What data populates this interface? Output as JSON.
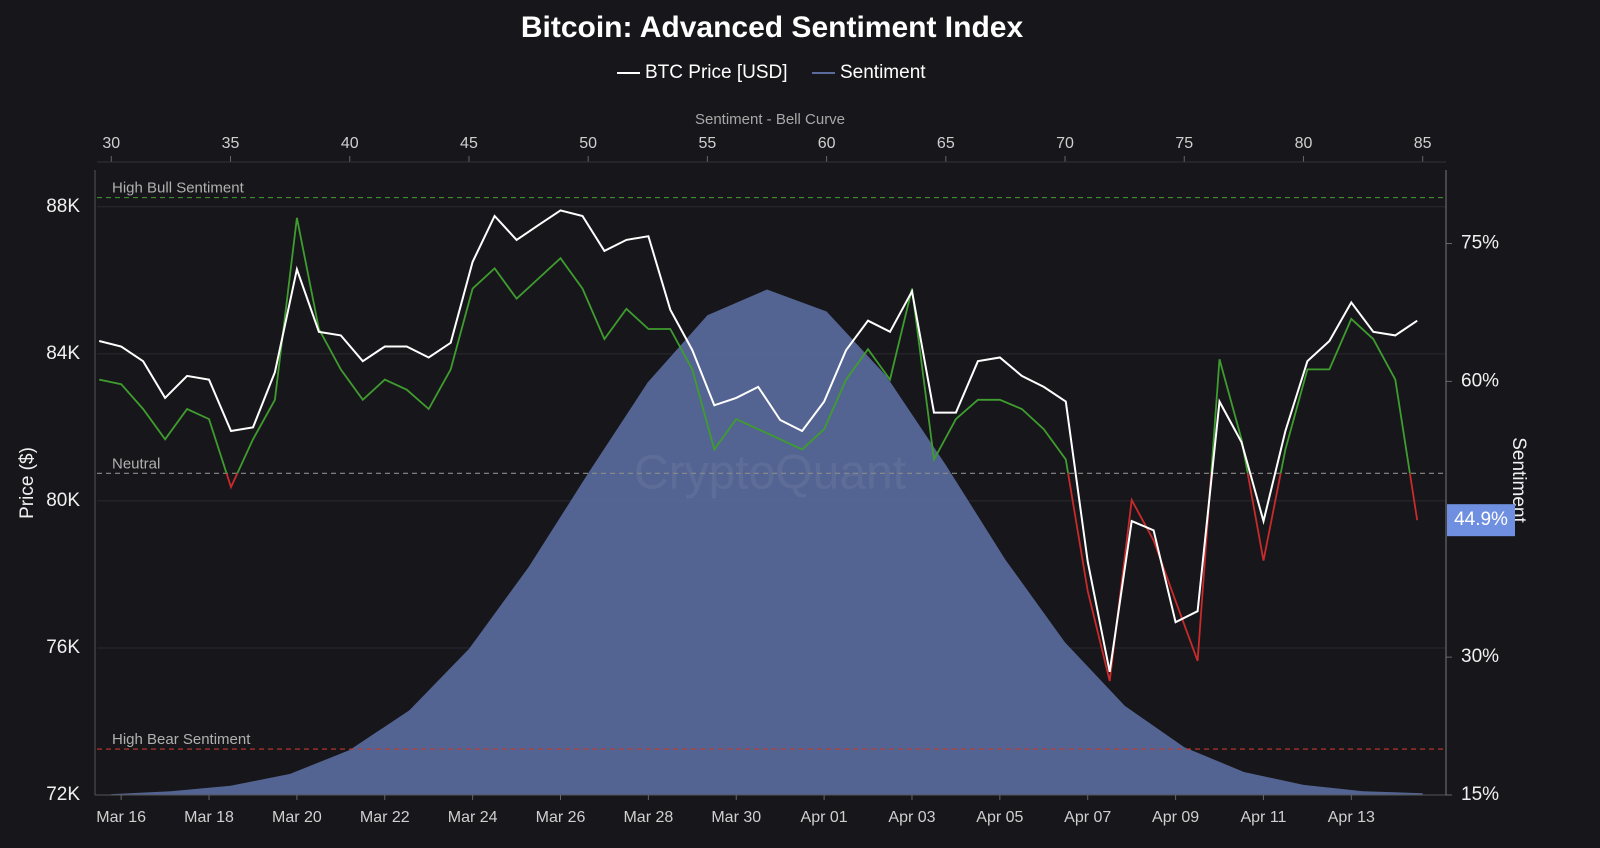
{
  "chart_data": {
    "type": "line",
    "title": "Bitcoin: Advanced Sentiment Index",
    "watermark": "CryptoQuant",
    "ylabel": "Price ($)",
    "y2label": "Sentiment",
    "x2label": "Sentiment - Bell Curve",
    "categories": [
      null,
      "Mar 16",
      null,
      null,
      null,
      "Mar 18",
      null,
      null,
      null,
      "Mar 20",
      null,
      null,
      null,
      "Mar 22",
      null,
      null,
      null,
      "Mar 24",
      null,
      null,
      null,
      "Mar 26",
      null,
      null,
      null,
      "Mar 28",
      null,
      null,
      null,
      "Mar 30",
      null,
      null,
      null,
      "Apr 01",
      null,
      null,
      null,
      "Apr 03",
      null,
      null,
      null,
      "Apr 05",
      null,
      null,
      null,
      "Apr 07",
      null,
      null,
      null,
      "Apr 09",
      null,
      null,
      null,
      "Apr 11",
      null,
      null,
      null,
      "Apr 13",
      null,
      null,
      null
    ],
    "ylim": [
      72000,
      89000
    ],
    "yticks": [
      {
        "value": 72000,
        "label": "72K"
      },
      {
        "value": 76000,
        "label": "76K"
      },
      {
        "value": 80000,
        "label": "80K"
      },
      {
        "value": 84000,
        "label": "84K"
      },
      {
        "value": 88000,
        "label": "88K"
      }
    ],
    "y2lim": [
      15,
      83
    ],
    "y2ticks": [
      {
        "value": 15,
        "label": "15%"
      },
      {
        "value": 30,
        "label": "30%"
      },
      {
        "value": 60,
        "label": "60%"
      },
      {
        "value": 75,
        "label": "75%"
      }
    ],
    "x2lim": [
      29.4,
      85.6
    ],
    "x2ticks": [
      30,
      35,
      40,
      45,
      50,
      55,
      60,
      65,
      70,
      75,
      80,
      85
    ],
    "grid": true,
    "series": [
      {
        "name": "BTC Price [USD]",
        "color": "#ffffff",
        "values": [
          84350,
          84200,
          83800,
          82800,
          83400,
          83300,
          81900,
          82000,
          83500,
          86300,
          84600,
          84500,
          83800,
          84200,
          84200,
          83900,
          84300,
          86500,
          87750,
          87100,
          87500,
          87900,
          87750,
          86800,
          87100,
          87200,
          85200,
          84100,
          82600,
          82800,
          83100,
          82200,
          81900,
          82700,
          84100,
          84900,
          84600,
          85700,
          82400,
          82400,
          83800,
          83900,
          83400,
          83100,
          82700,
          78350,
          75350,
          79450,
          79200,
          76700,
          77000,
          82700,
          81600,
          79450,
          81900,
          83800,
          84350,
          85400,
          84600,
          84500,
          84900
        ]
      },
      {
        "name": "Sentiment",
        "color": "#5a6b9c",
        "axis": "y2",
        "x": [
          30,
          32.5,
          35,
          37.5,
          40,
          42.5,
          45,
          47.5,
          50,
          52.5,
          55,
          57.5,
          60,
          62.5,
          65,
          67.5,
          70,
          72.5,
          75,
          77.5,
          80,
          82.5,
          85
        ],
        "values": [
          15.1,
          15.4,
          16.0,
          17.3,
          19.9,
          24.2,
          30.9,
          39.8,
          50.0,
          59.9,
          67.2,
          70.0,
          67.6,
          60.6,
          50.9,
          40.6,
          31.6,
          24.7,
          20.2,
          17.5,
          16.1,
          15.4,
          15.2
        ]
      }
    ],
    "sentiment_line": {
      "axis": "y2",
      "above_color": "#3f9c2e",
      "below_color": "#c92a2a",
      "values": [
        60.2,
        59.7,
        57,
        53.7,
        57,
        55.9,
        48.5,
        53.7,
        58,
        77.8,
        65.7,
        61.3,
        58,
        60.2,
        59.1,
        57,
        61.3,
        70.1,
        72.3,
        69,
        71.2,
        73.4,
        70.1,
        64.6,
        67.9,
        65.7,
        65.7,
        61.3,
        52.6,
        55.9,
        54.8,
        53.7,
        52.6,
        54.8,
        60.2,
        63.5,
        60.2,
        70.1,
        51.5,
        55.9,
        58,
        58,
        57,
        54.8,
        51.5,
        37.2,
        27.4,
        47.1,
        42.7,
        36.1,
        29.6,
        62.4,
        53.7,
        40.5,
        52.6,
        61.3,
        61.3,
        66.8,
        64.6,
        60.2,
        44.9
      ]
    },
    "reference_lines": [
      {
        "label": "High Bull Sentiment",
        "value": 80,
        "color": "#3f8a2e"
      },
      {
        "label": "Neutral",
        "value": 50,
        "color": "#8a8a8a",
        "split_colors": true
      },
      {
        "label": "High Bear Sentiment",
        "value": 20,
        "color": "#c0392b"
      }
    ],
    "current_label": {
      "value": 44.9,
      "label": "44.9%",
      "color": "#6f8fe0"
    }
  }
}
